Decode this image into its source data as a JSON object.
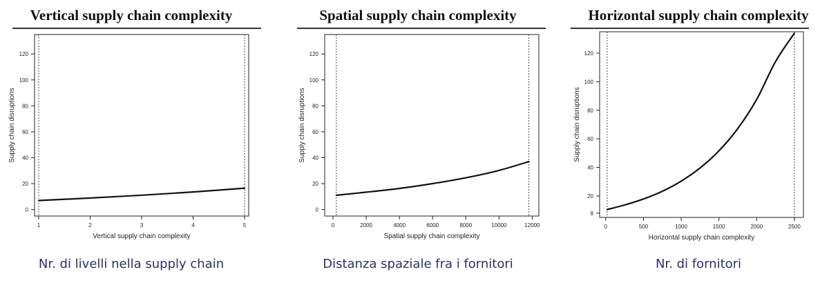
{
  "chart_data": [
    {
      "type": "line",
      "title": "Vertical supply chain complexity",
      "xlabel": "Vertical supply chain complexity",
      "ylabel": "Supply chain disruptions",
      "caption": "Nr. di livelli nella supply chain",
      "xlim": [
        0.92,
        5.08
      ],
      "ylim": [
        -5,
        135
      ],
      "xticks": [
        1,
        2,
        3,
        4,
        5
      ],
      "yticks": [
        0,
        20,
        40,
        60,
        80,
        100,
        120
      ],
      "vlines": [
        1,
        5
      ],
      "grid": false,
      "series": [
        {
          "x": [
            1,
            2,
            3,
            4,
            5
          ],
          "y": [
            7,
            8.9,
            11.1,
            13.6,
            16.5
          ]
        }
      ]
    },
    {
      "type": "line",
      "title": "Spatial supply chain complexity",
      "xlabel": "Spatial supply chain complexity",
      "ylabel": "Supply chain disruptions",
      "caption": "Distanza spaziale fra i fornitori",
      "xlim": [
        -500,
        12400
      ],
      "ylim": [
        -5,
        135
      ],
      "xticks": [
        0,
        2000,
        4000,
        6000,
        8000,
        10000,
        12000
      ],
      "yticks": [
        0,
        20,
        40,
        60,
        80,
        100,
        120
      ],
      "vlines": [
        200,
        11800
      ],
      "grid": false,
      "series": [
        {
          "x": [
            200,
            2000,
            4000,
            6000,
            8000,
            10000,
            11800
          ],
          "y": [
            11,
            13.4,
            16.3,
            20,
            24.5,
            30.2,
            37
          ]
        }
      ]
    },
    {
      "type": "line",
      "title": "Horizontal supply chain complexity",
      "xlabel": "Horizontal supply chain complexity",
      "ylabel": "Supply chain disruptions",
      "caption": "Nr. di fornitori",
      "xlim": [
        -80,
        2620
      ],
      "ylim": [
        5,
        135
      ],
      "xticks": [
        0,
        500,
        1000,
        1500,
        2000,
        2500
      ],
      "yticks": [
        8,
        20,
        40,
        60,
        80,
        100,
        120
      ],
      "vlines": [
        20,
        2500
      ],
      "grid": false,
      "series": [
        {
          "x": [
            20,
            250,
            500,
            750,
            1000,
            1250,
            1500,
            1750,
            2000,
            2250,
            2500
          ],
          "y": [
            10.5,
            13.7,
            17.9,
            23.3,
            30.4,
            39.6,
            51.6,
            67.2,
            87.6,
            114.1,
            134
          ]
        }
      ]
    }
  ]
}
